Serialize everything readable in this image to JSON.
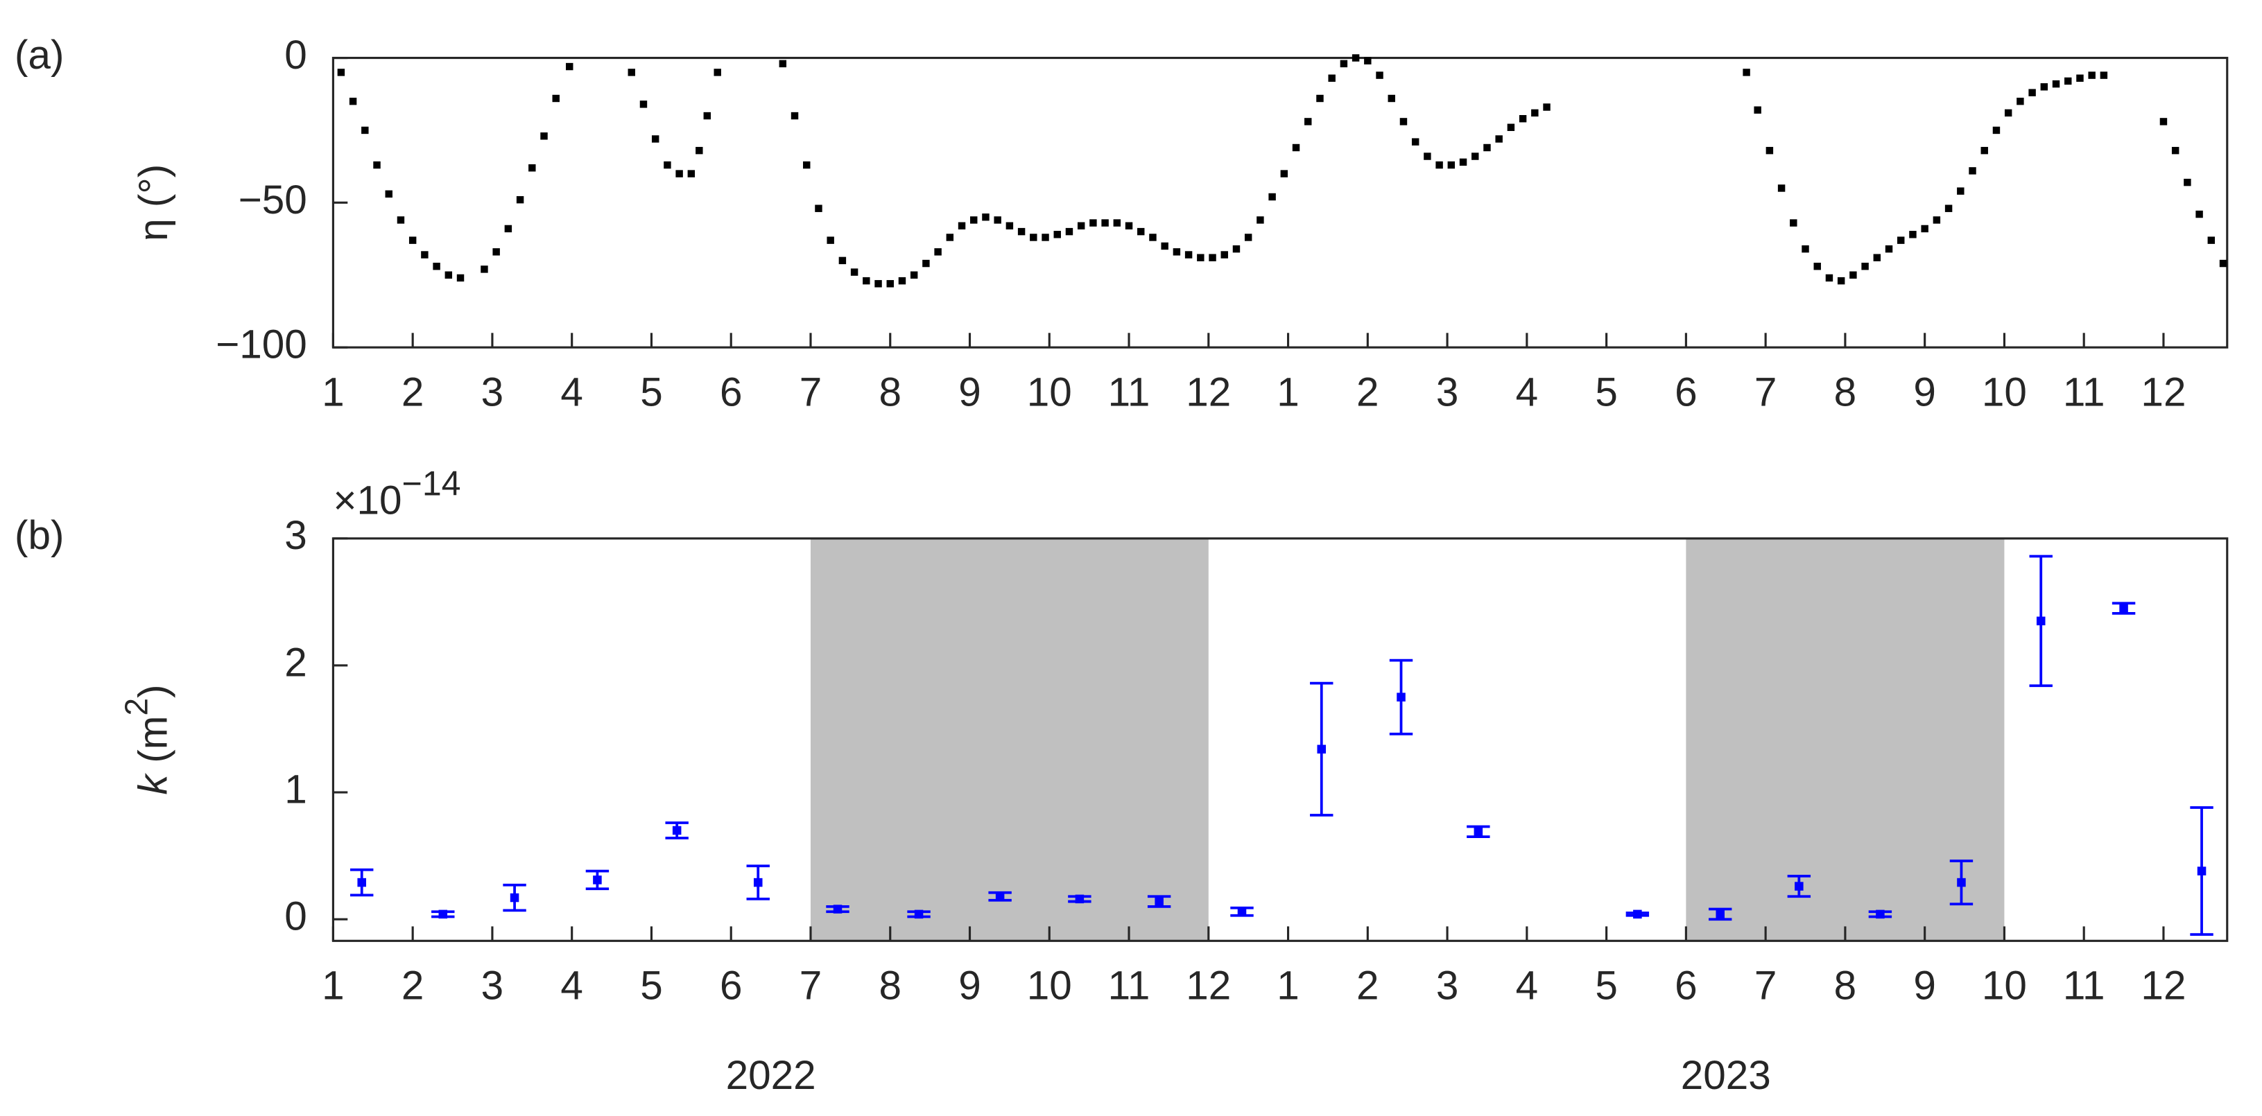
{
  "chart_data": [
    {
      "type": "scatter",
      "panel_label": "(a)",
      "y_label": "η (°)",
      "color": "#000000",
      "x": [
        1.1,
        1.25,
        1.4,
        1.55,
        1.7,
        1.85,
        2.0,
        2.15,
        2.3,
        2.45,
        2.6,
        2.9,
        3.05,
        3.2,
        3.35,
        3.5,
        3.65,
        3.8,
        3.97,
        4.75,
        4.9,
        5.05,
        5.2,
        5.35,
        5.5,
        5.6,
        5.7,
        5.83,
        6.65,
        6.8,
        6.95,
        7.1,
        7.25,
        7.4,
        7.55,
        7.7,
        7.85,
        8.0,
        8.15,
        8.3,
        8.45,
        8.6,
        8.75,
        8.9,
        9.05,
        9.2,
        9.35,
        9.5,
        9.65,
        9.8,
        9.95,
        10.1,
        10.25,
        10.4,
        10.55,
        10.7,
        10.85,
        11.0,
        11.15,
        11.3,
        11.45,
        11.6,
        11.75,
        11.9,
        12.05,
        12.2,
        12.35,
        12.5,
        12.65,
        12.8,
        12.95,
        13.1,
        13.25,
        13.4,
        13.55,
        13.7,
        13.85,
        14.0,
        14.15,
        14.3,
        14.45,
        14.6,
        14.75,
        14.9,
        15.05,
        15.2,
        15.35,
        15.5,
        15.65,
        15.8,
        15.95,
        16.1,
        16.25,
        18.76,
        18.9,
        19.05,
        19.2,
        19.35,
        19.5,
        19.65,
        19.8,
        19.95,
        20.1,
        20.25,
        20.4,
        20.55,
        20.7,
        20.85,
        21.0,
        21.15,
        21.3,
        21.45,
        21.6,
        21.75,
        21.9,
        22.05,
        22.2,
        22.35,
        22.5,
        22.65,
        22.8,
        22.95,
        23.1,
        23.25,
        24.0,
        24.15,
        24.3,
        24.45,
        24.6,
        24.75
      ],
      "values": [
        -5,
        -15,
        -25,
        -37,
        -47,
        -56,
        -63,
        -68,
        -72,
        -75,
        -76,
        -73,
        -67,
        -59,
        -49,
        -38,
        -27,
        -14,
        -3,
        -5,
        -16,
        -28,
        -37,
        -40,
        -40,
        -32,
        -20,
        -5,
        -2,
        -20,
        -37,
        -52,
        -63,
        -70,
        -74,
        -77,
        -78,
        -78,
        -77,
        -75,
        -71,
        -67,
        -62,
        -58,
        -56,
        -55,
        -56,
        -58,
        -60,
        -62,
        -62,
        -61,
        -60,
        -58,
        -57,
        -57,
        -57,
        -58,
        -60,
        -62,
        -65,
        -67,
        -68,
        -69,
        -69,
        -68,
        -66,
        -62,
        -56,
        -48,
        -40,
        -31,
        -22,
        -14,
        -7,
        -2,
        0,
        -1,
        -6,
        -14,
        -22,
        -29,
        -34,
        -37,
        -37,
        -36,
        -34,
        -31,
        -28,
        -24,
        -21,
        -19,
        -17,
        -5,
        -18,
        -32,
        -45,
        -57,
        -66,
        -72,
        -76,
        -77,
        -75,
        -72,
        -69,
        -66,
        -63,
        -61,
        -59,
        -56,
        -52,
        -46,
        -39,
        -32,
        -25,
        -19,
        -15,
        -12,
        -10,
        -9,
        -8,
        -7,
        -6,
        -6,
        -22,
        -32,
        -43,
        -54,
        -63,
        -71
      ],
      "xlim": [
        1,
        24.8
      ],
      "ylim": [
        -100,
        0
      ],
      "yticks": [
        {
          "value": -100,
          "label": "−100"
        },
        {
          "value": -50,
          "label": "−50"
        },
        0
      ],
      "xticks": [
        1,
        2,
        3,
        4,
        5,
        6,
        7,
        8,
        9,
        10,
        11,
        12,
        {
          "value": 13,
          "label": "1"
        },
        {
          "value": 14,
          "label": "2"
        },
        {
          "value": 15,
          "label": "3"
        },
        {
          "value": 16,
          "label": "4"
        },
        {
          "value": 17,
          "label": "5"
        },
        {
          "value": 18,
          "label": "6"
        },
        {
          "value": 19,
          "label": "7"
        },
        {
          "value": 20,
          "label": "8"
        },
        {
          "value": 21,
          "label": "9"
        },
        {
          "value": 22,
          "label": "10"
        },
        {
          "value": 23,
          "label": "11"
        },
        {
          "value": 24,
          "label": "12"
        }
      ]
    },
    {
      "type": "errorbar",
      "panel_label": "(b)",
      "y_label": {
        "symbol": "k",
        "unit": "(m",
        "unit_exponent": "2",
        "close": ")"
      },
      "multiplier": {
        "base": "×10",
        "exponent": "−14"
      },
      "color": "#0000ff",
      "x": [
        1.36,
        2.38,
        3.28,
        4.32,
        5.32,
        6.34,
        7.34,
        8.36,
        9.38,
        10.38,
        11.38,
        12.42,
        13.42,
        14.42,
        15.39,
        17.39,
        18.43,
        19.42,
        20.44,
        21.46,
        22.46,
        23.5,
        24.48
      ],
      "values": [
        0.29,
        0.04,
        0.17,
        0.31,
        0.7,
        0.29,
        0.08,
        0.04,
        0.18,
        0.16,
        0.14,
        0.06,
        1.34,
        1.75,
        0.69,
        0.04,
        0.04,
        0.26,
        0.04,
        0.29,
        2.35,
        2.45,
        0.38
      ],
      "errors": [
        0.1,
        0.02,
        0.1,
        0.07,
        0.06,
        0.13,
        0.02,
        0.02,
        0.03,
        0.02,
        0.04,
        0.03,
        0.52,
        0.29,
        0.04,
        0.01,
        0.04,
        0.08,
        0.02,
        0.17,
        0.51,
        0.04,
        0.5
      ],
      "shaded_regions": [
        [
          7,
          12
        ],
        [
          18,
          22
        ]
      ],
      "shade_color": "#c0c0c0",
      "year_labels": [
        "2022",
        "2023"
      ],
      "xlim": [
        1,
        24.8
      ],
      "ylim": [
        -0.17,
        3
      ],
      "yticks": [
        0,
        1,
        2,
        3
      ],
      "xticks": [
        1,
        2,
        3,
        4,
        5,
        6,
        7,
        8,
        9,
        10,
        11,
        12,
        {
          "value": 13,
          "label": "1"
        },
        {
          "value": 14,
          "label": "2"
        },
        {
          "value": 15,
          "label": "3"
        },
        {
          "value": 16,
          "label": "4"
        },
        {
          "value": 17,
          "label": "5"
        },
        {
          "value": 18,
          "label": "6"
        },
        {
          "value": 19,
          "label": "7"
        },
        {
          "value": 20,
          "label": "8"
        },
        {
          "value": 21,
          "label": "9"
        },
        {
          "value": 22,
          "label": "10"
        },
        {
          "value": 23,
          "label": "11"
        },
        {
          "value": 24,
          "label": "12"
        }
      ]
    }
  ]
}
